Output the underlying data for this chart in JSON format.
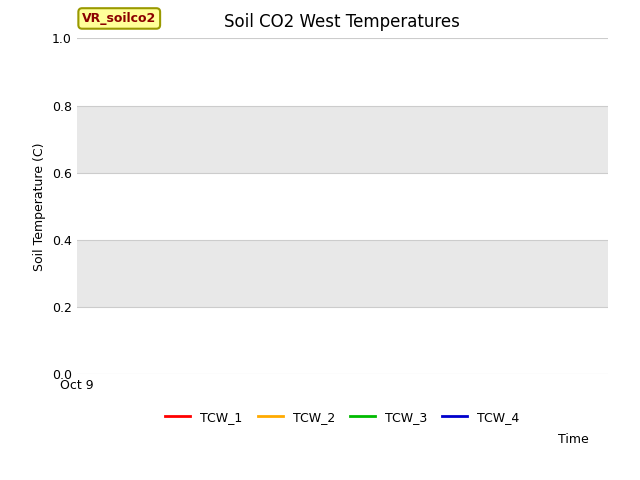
{
  "title": "Soil CO2 West Temperatures",
  "xlabel": "Time",
  "ylabel": "Soil Temperature (C)",
  "ylim": [
    0.0,
    1.0
  ],
  "yticks": [
    0.0,
    0.2,
    0.4,
    0.6,
    0.8,
    1.0
  ],
  "xlim_label": "Oct 9",
  "annotation_text": "VR_soilco2",
  "annotation_color": "#8b0000",
  "annotation_bg": "#ffff99",
  "annotation_border": "#999900",
  "figure_bg": "#ffffff",
  "plot_bg": "#ffffff",
  "grid_color": "#cccccc",
  "zebra_colors": [
    "#ffffff",
    "#e8e8e8"
  ],
  "legend_entries": [
    {
      "label": "TCW_1",
      "color": "#ff0000"
    },
    {
      "label": "TCW_2",
      "color": "#ffaa00"
    },
    {
      "label": "TCW_3",
      "color": "#00bb00"
    },
    {
      "label": "TCW_4",
      "color": "#0000cc"
    }
  ],
  "title_fontsize": 12,
  "axis_label_fontsize": 9,
  "tick_fontsize": 9,
  "legend_fontsize": 9
}
